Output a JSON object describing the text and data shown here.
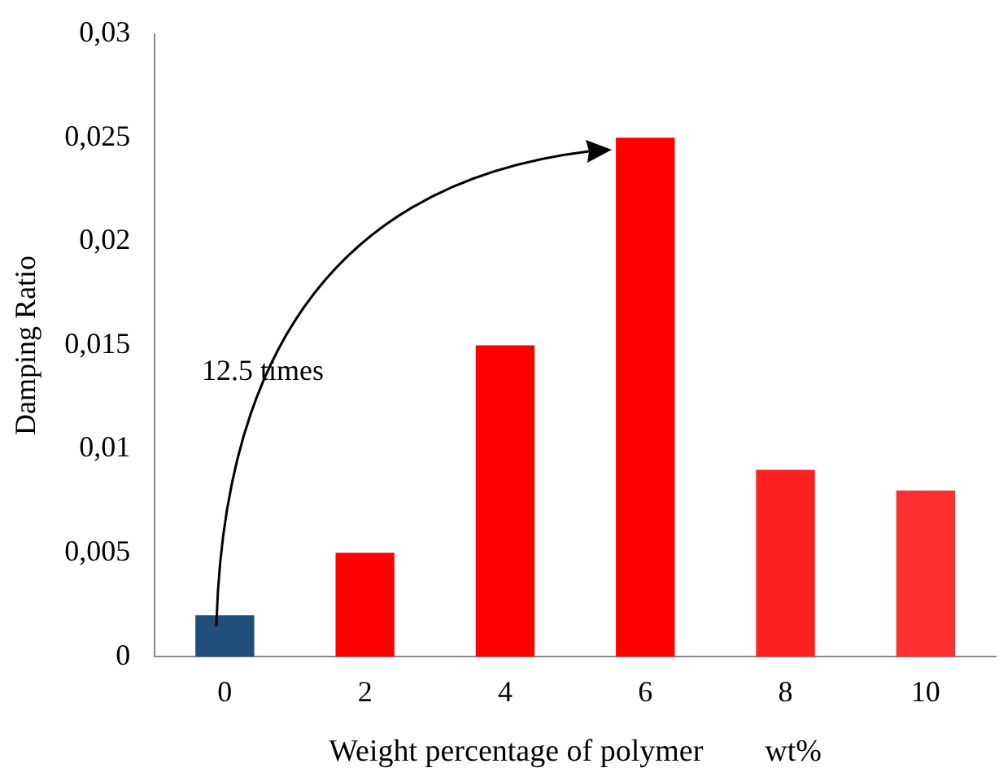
{
  "chart_data": {
    "type": "bar",
    "xlabel": "Weight percentage of polymer        wt%",
    "ylabel": "Damping Ratio",
    "categories": [
      "0",
      "2",
      "4",
      "6",
      "8",
      "10"
    ],
    "values": [
      0.002,
      0.005,
      0.015,
      0.025,
      0.009,
      0.008
    ],
    "colors": [
      "#1f4e79",
      "#ff0000",
      "#ff0000",
      "#ff0000",
      "#ff2020",
      "#ff3030"
    ],
    "ylim": [
      0,
      0.03
    ],
    "yticks": [
      0,
      {
        "value": 0.005,
        "label": "0,005"
      },
      {
        "value": 0.01,
        "label": "0,01"
      },
      {
        "value": 0.015,
        "label": "0,015"
      },
      {
        "value": 0.02,
        "label": "0,02"
      },
      {
        "value": 0.025,
        "label": "0,025"
      },
      {
        "value": 0.03,
        "label": "0,03"
      }
    ],
    "grid": false,
    "legend": false,
    "annotations": [
      "12.5 times"
    ]
  }
}
